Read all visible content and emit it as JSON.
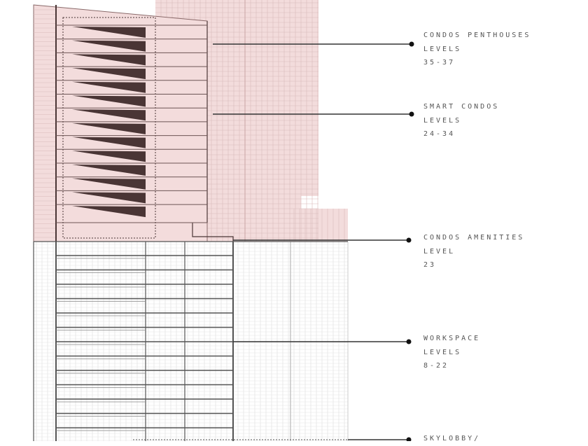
{
  "colors": {
    "pink": "#f3dcdc",
    "grid": "#d9b9b9",
    "dark": "#4a3535",
    "line": "#333333",
    "text": "#555555"
  },
  "diagram": {
    "penthouse_wedge_count": 14,
    "workspace_floor_count": 13
  },
  "labels": [
    {
      "title": "CONDOS PENTHOUSES",
      "sub": "LEVELS",
      "range": "35-37"
    },
    {
      "title": "SMART CONDOS",
      "sub": "LEVELS",
      "range": "24-34"
    },
    {
      "title": "CONDOS AMENITIES",
      "sub": "LEVEL",
      "range": "23"
    },
    {
      "title": "WORKSPACE",
      "sub": "LEVELS",
      "range": "8-22"
    },
    {
      "title": "SKYLOBBY/",
      "sub": "",
      "range": ""
    }
  ]
}
